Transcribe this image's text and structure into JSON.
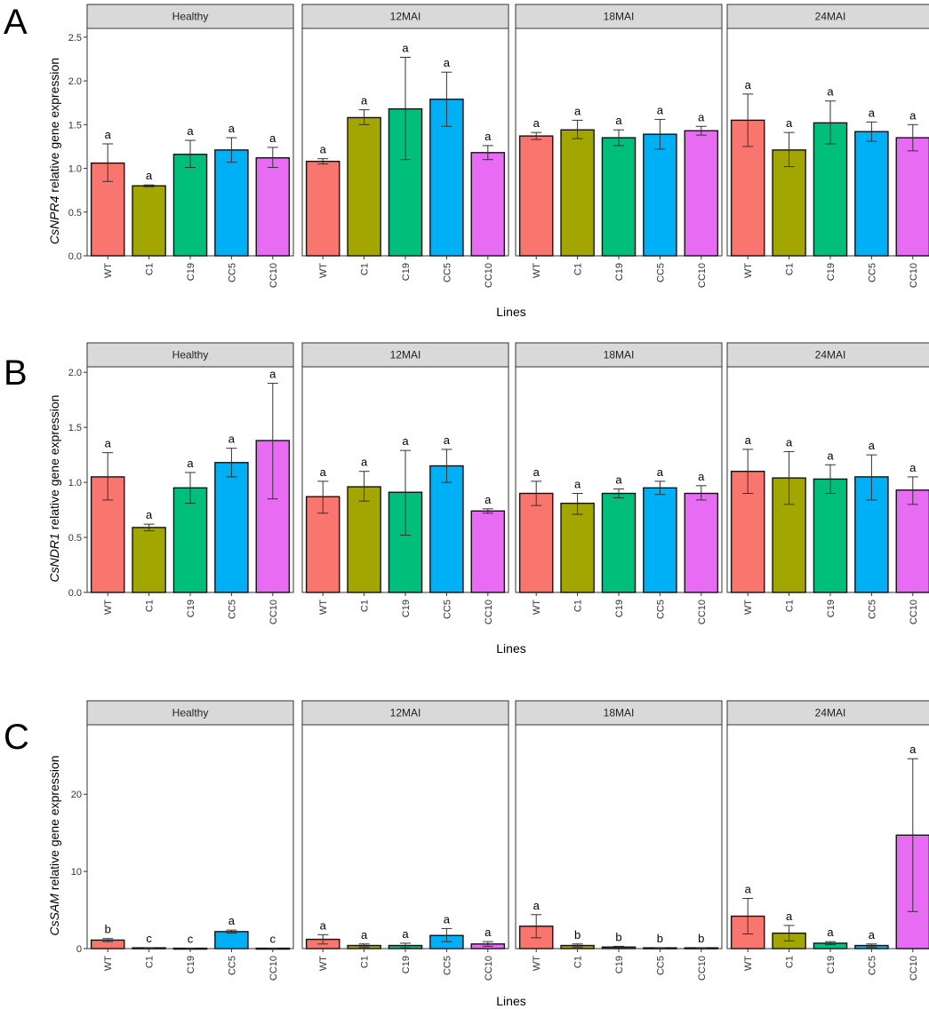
{
  "colors": {
    "WT": "#F8766D",
    "C1": "#A3A500",
    "C19": "#00BF7D",
    "CC5": "#00B0F6",
    "CC10": "#E76BF3",
    "strip_bg": "#D9D9D9",
    "panel_border": "#333333"
  },
  "chart_data": [
    {
      "type": "bar",
      "panel_label": "A",
      "ylabel_gene": "CsNPR4",
      "ylabel_rest": " relative gene expression",
      "xlabel": "Lines",
      "ylim": [
        0,
        2.6
      ],
      "yticks": [
        "0.0",
        "0.5",
        "1.0",
        "1.5",
        "2.0",
        "2.5"
      ],
      "categories": [
        "WT",
        "C1",
        "C19",
        "CC5",
        "CC10"
      ],
      "facets": [
        {
          "name": "Healthy",
          "values": [
            1.06,
            0.8,
            1.16,
            1.21,
            1.12
          ],
          "err_low": [
            0.85,
            0.79,
            1.01,
            1.07,
            1.01
          ],
          "err_high": [
            1.28,
            0.81,
            1.32,
            1.35,
            1.24
          ],
          "sig": [
            "a",
            "a",
            "a",
            "a",
            "a"
          ]
        },
        {
          "name": "12MAI",
          "values": [
            1.08,
            1.58,
            1.68,
            1.79,
            1.18
          ],
          "err_low": [
            1.05,
            1.5,
            1.1,
            1.48,
            1.1
          ],
          "err_high": [
            1.11,
            1.67,
            2.27,
            2.1,
            1.26
          ],
          "sig": [
            "a",
            "a",
            "a",
            "a",
            "a"
          ]
        },
        {
          "name": "18MAI",
          "values": [
            1.37,
            1.44,
            1.35,
            1.39,
            1.43
          ],
          "err_low": [
            1.33,
            1.34,
            1.26,
            1.22,
            1.38
          ],
          "err_high": [
            1.41,
            1.55,
            1.44,
            1.56,
            1.48
          ],
          "sig": [
            "a",
            "a",
            "a",
            "a",
            "a"
          ]
        },
        {
          "name": "24MAI",
          "values": [
            1.55,
            1.21,
            1.52,
            1.42,
            1.35
          ],
          "err_low": [
            1.25,
            1.02,
            1.28,
            1.31,
            1.2
          ],
          "err_high": [
            1.85,
            1.41,
            1.77,
            1.53,
            1.5
          ],
          "sig": [
            "a",
            "a",
            "a",
            "a",
            "a"
          ]
        }
      ]
    },
    {
      "type": "bar",
      "panel_label": "B",
      "ylabel_gene": "CsNDR1",
      "ylabel_rest": " relative gene expression",
      "xlabel": "Lines",
      "ylim": [
        0,
        2.05
      ],
      "yticks": [
        "0.0",
        "0.5",
        "1.0",
        "1.5",
        "2.0"
      ],
      "categories": [
        "WT",
        "C1",
        "C19",
        "CC5",
        "CC10"
      ],
      "facets": [
        {
          "name": "Healthy",
          "values": [
            1.05,
            0.59,
            0.95,
            1.18,
            1.38
          ],
          "err_low": [
            0.84,
            0.56,
            0.81,
            1.05,
            0.85
          ],
          "err_high": [
            1.27,
            0.62,
            1.09,
            1.31,
            1.9
          ],
          "sig": [
            "a",
            "a",
            "a",
            "a",
            "a"
          ]
        },
        {
          "name": "12MAI",
          "values": [
            0.87,
            0.96,
            0.91,
            1.15,
            0.74
          ],
          "err_low": [
            0.72,
            0.83,
            0.52,
            1.0,
            0.72
          ],
          "err_high": [
            1.01,
            1.1,
            1.29,
            1.3,
            0.76
          ],
          "sig": [
            "a",
            "a",
            "a",
            "a",
            "a"
          ]
        },
        {
          "name": "18MAI",
          "values": [
            0.9,
            0.81,
            0.9,
            0.95,
            0.9
          ],
          "err_low": [
            0.79,
            0.71,
            0.86,
            0.89,
            0.84
          ],
          "err_high": [
            1.01,
            0.9,
            0.94,
            1.01,
            0.97
          ],
          "sig": [
            "a",
            "a",
            "a",
            "a",
            "a"
          ]
        },
        {
          "name": "24MAI",
          "values": [
            1.1,
            1.04,
            1.03,
            1.05,
            0.93
          ],
          "err_low": [
            0.9,
            0.8,
            0.9,
            0.84,
            0.8
          ],
          "err_high": [
            1.3,
            1.28,
            1.16,
            1.25,
            1.05
          ],
          "sig": [
            "a",
            "a",
            "a",
            "a",
            "a"
          ]
        }
      ]
    },
    {
      "type": "bar",
      "panel_label": "C",
      "ylabel_gene": "CsSAM",
      "ylabel_rest": " relative gene expression",
      "xlabel": "Lines",
      "ylim": [
        0,
        29
      ],
      "yticks": [
        "0",
        "10",
        "20"
      ],
      "categories": [
        "WT",
        "C1",
        "C19",
        "CC5",
        "CC10"
      ],
      "facets": [
        {
          "name": "Healthy",
          "values": [
            1.1,
            0.1,
            0.05,
            2.2,
            0.05
          ],
          "err_low": [
            0.9,
            0.1,
            0.05,
            2.0,
            0.05
          ],
          "err_high": [
            1.3,
            0.1,
            0.05,
            2.4,
            0.05
          ],
          "sig": [
            "b",
            "c",
            "c",
            "a",
            "c"
          ]
        },
        {
          "name": "12MAI",
          "values": [
            1.2,
            0.4,
            0.4,
            1.7,
            0.6
          ],
          "err_low": [
            0.6,
            0.2,
            0.1,
            0.9,
            0.3
          ],
          "err_high": [
            1.8,
            0.6,
            0.7,
            2.6,
            0.9
          ],
          "sig": [
            "a",
            "a",
            "a",
            "a",
            "a"
          ]
        },
        {
          "name": "18MAI",
          "values": [
            2.9,
            0.4,
            0.2,
            0.1,
            0.1
          ],
          "err_low": [
            1.4,
            0.2,
            0.1,
            0.1,
            0.1
          ],
          "err_high": [
            4.4,
            0.6,
            0.3,
            0.1,
            0.1
          ],
          "sig": [
            "a",
            "b",
            "b",
            "b",
            "b"
          ]
        },
        {
          "name": "24MAI",
          "values": [
            4.2,
            2.0,
            0.7,
            0.4,
            14.7
          ],
          "err_low": [
            1.9,
            1.0,
            0.5,
            0.2,
            4.8
          ],
          "err_high": [
            6.5,
            3.0,
            0.9,
            0.6,
            24.6
          ],
          "sig": [
            "a",
            "a",
            "a",
            "a",
            "a"
          ]
        }
      ]
    }
  ]
}
